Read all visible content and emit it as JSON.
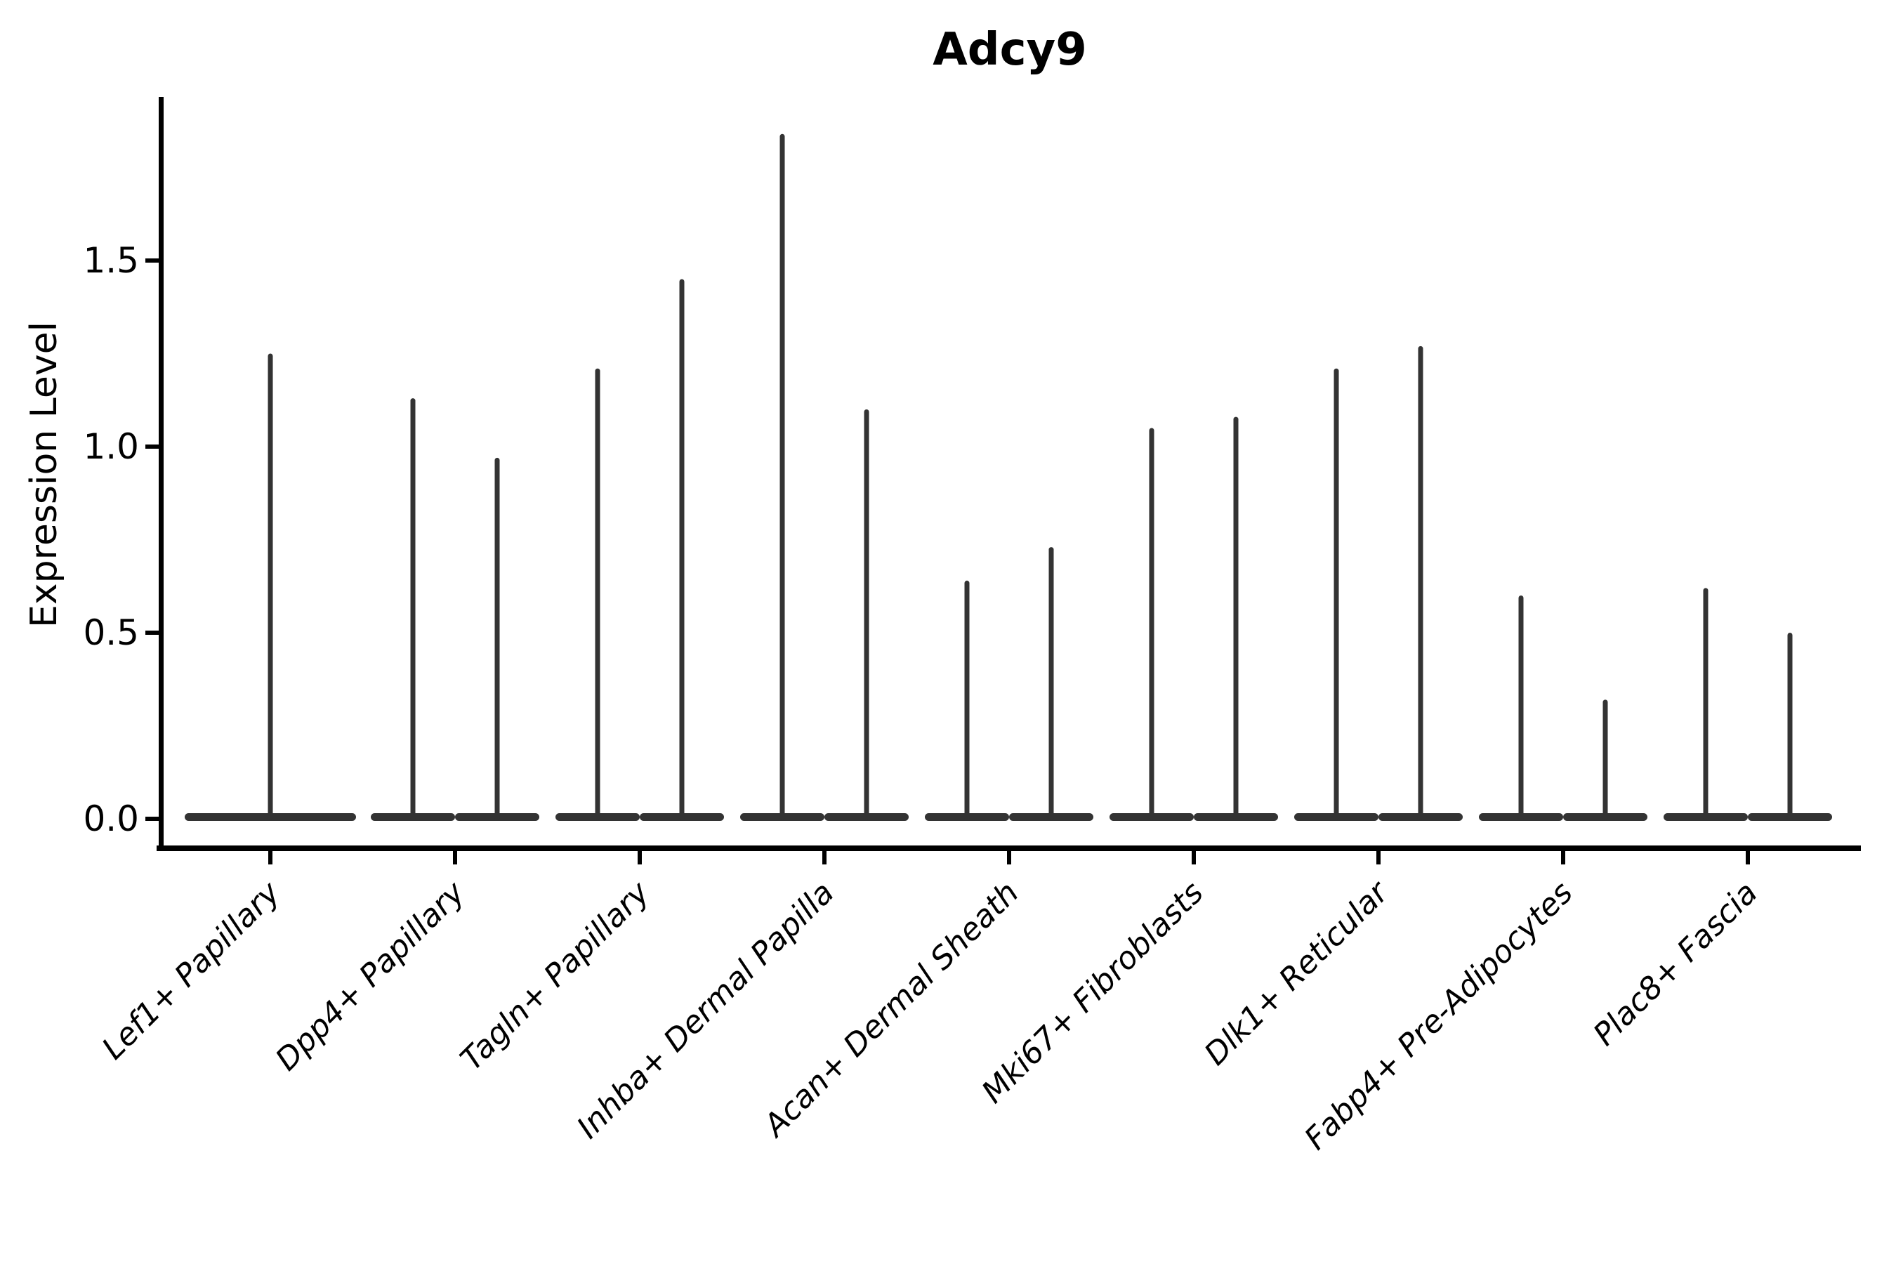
{
  "figure": {
    "title": "Adcy9"
  },
  "axes": {
    "ylabel": "Expression Level",
    "ytick_labels": [
      "0.0",
      "0.5",
      "1.0",
      "1.5"
    ]
  },
  "chart_data": {
    "type": "violin",
    "title": "Adcy9",
    "xlabel": "",
    "ylabel": "Expression Level",
    "ylim": [
      -0.09,
      1.94
    ],
    "ytick_values": [
      0.0,
      0.5,
      1.0,
      1.5
    ],
    "grid": false,
    "legend": null,
    "baseline_value": 0.0,
    "categories": [
      "Lef1+ Papillary",
      "Dpp4+ Papillary",
      "Tagln+ Papillary",
      "Inhba+ Dermal Papilla",
      "Acan+ Dermal Sheath",
      "Mki67+ Fibroblasts",
      "Dlk1+ Reticular",
      "Fabp4+ Pre-Adipocytes",
      "Plac8+ Fascia"
    ],
    "series": [
      {
        "category": "Lef1+ Papillary",
        "violin_max_values": [
          1.25
        ]
      },
      {
        "category": "Dpp4+ Papillary",
        "violin_max_values": [
          1.13,
          0.97
        ]
      },
      {
        "category": "Tagln+ Papillary",
        "violin_max_values": [
          1.21,
          1.45
        ]
      },
      {
        "category": "Inhba+ Dermal Papilla",
        "violin_max_values": [
          1.84,
          1.1
        ]
      },
      {
        "category": "Acan+ Dermal Sheath",
        "violin_max_values": [
          0.64,
          0.73
        ]
      },
      {
        "category": "Mki67+ Fibroblasts",
        "violin_max_values": [
          1.05,
          1.08
        ]
      },
      {
        "category": "Dlk1+ Reticular",
        "violin_max_values": [
          1.21,
          1.27
        ]
      },
      {
        "category": "Fabp4+ Pre-Adipocytes",
        "violin_max_values": [
          0.6,
          0.32
        ]
      },
      {
        "category": "Plac8+ Fascia",
        "violin_max_values": [
          0.62,
          0.5
        ]
      }
    ],
    "colors": {
      "violin": "#333333",
      "axis": "#000000",
      "text": "#000000",
      "background": "#ffffff"
    }
  }
}
